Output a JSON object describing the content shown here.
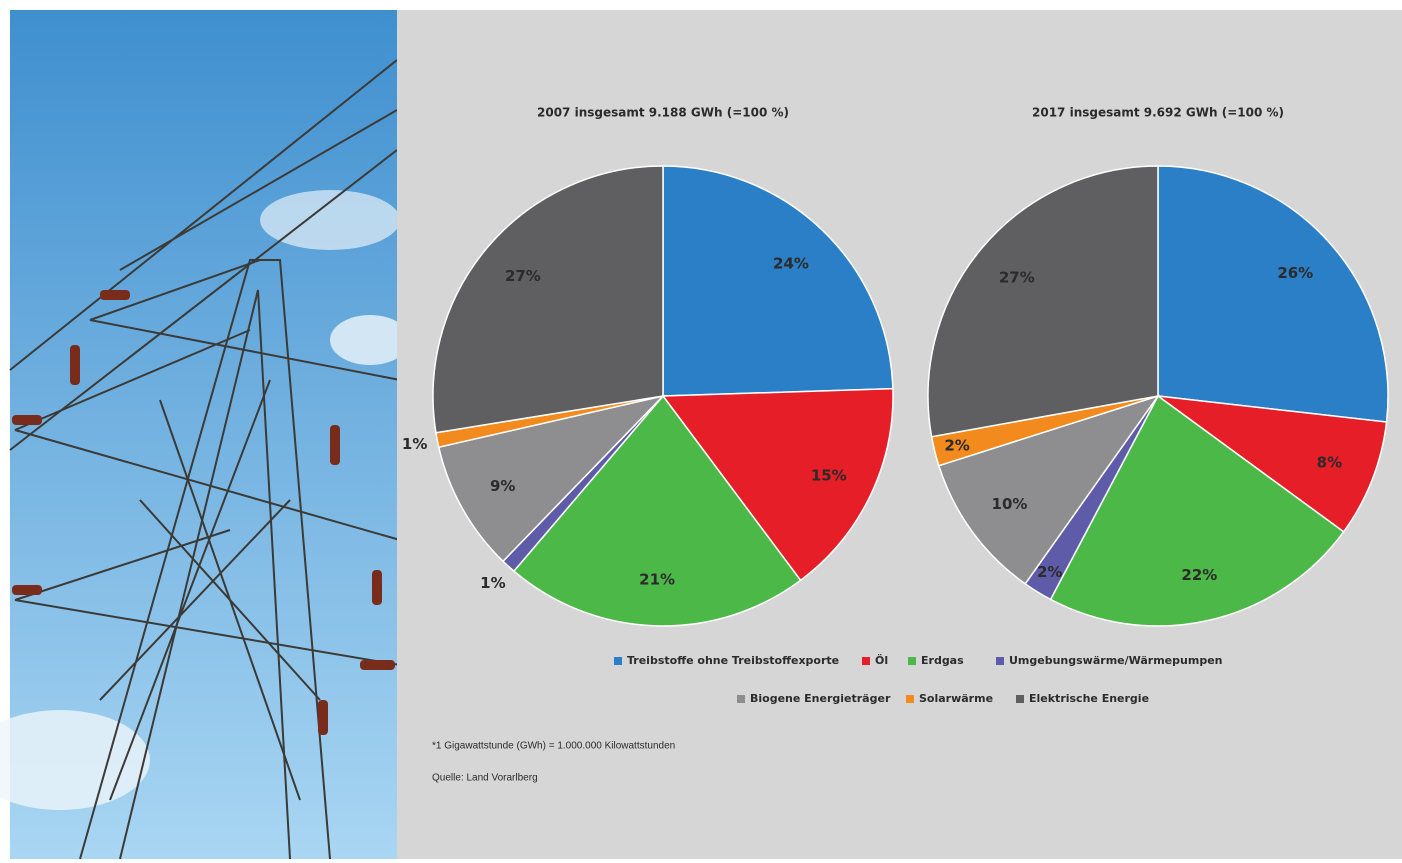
{
  "chart_data": [
    {
      "type": "pie",
      "title": "2007 insgesamt 9.188 GWh (=100 %)",
      "categories": [
        "Treibstoffe ohne Treibstoffexporte",
        "Öl",
        "Erdgas",
        "Umgebungswärme/Wärmepumpen",
        "Biogene Energieträger",
        "Solarwärme",
        "Elektrische Energie"
      ],
      "colors": [
        "#2a7fc6",
        "#e61e27",
        "#4cb848",
        "#5e5ba8",
        "#8e8e90",
        "#f28a1e",
        "#5f5e60"
      ],
      "values": [
        24,
        15,
        21,
        1,
        9,
        1,
        27
      ],
      "value_labels": [
        "24%",
        "15%",
        "21%",
        "1%",
        "9%",
        "1%",
        "27%"
      ]
    },
    {
      "type": "pie",
      "title": "2017 insgesamt  9.692 GWh (=100 %)",
      "values": [
        26,
        8,
        22,
        2,
        10,
        2,
        27
      ],
      "value_labels": [
        "26%",
        "8%",
        "22%",
        "2%",
        "10%",
        "2%",
        "27%"
      ]
    }
  ],
  "notes": [
    "*1 Gigawattstunde (GWh) = 1.000.000 Kilowattstunden",
    "Quelle: Land Vorarlberg"
  ]
}
